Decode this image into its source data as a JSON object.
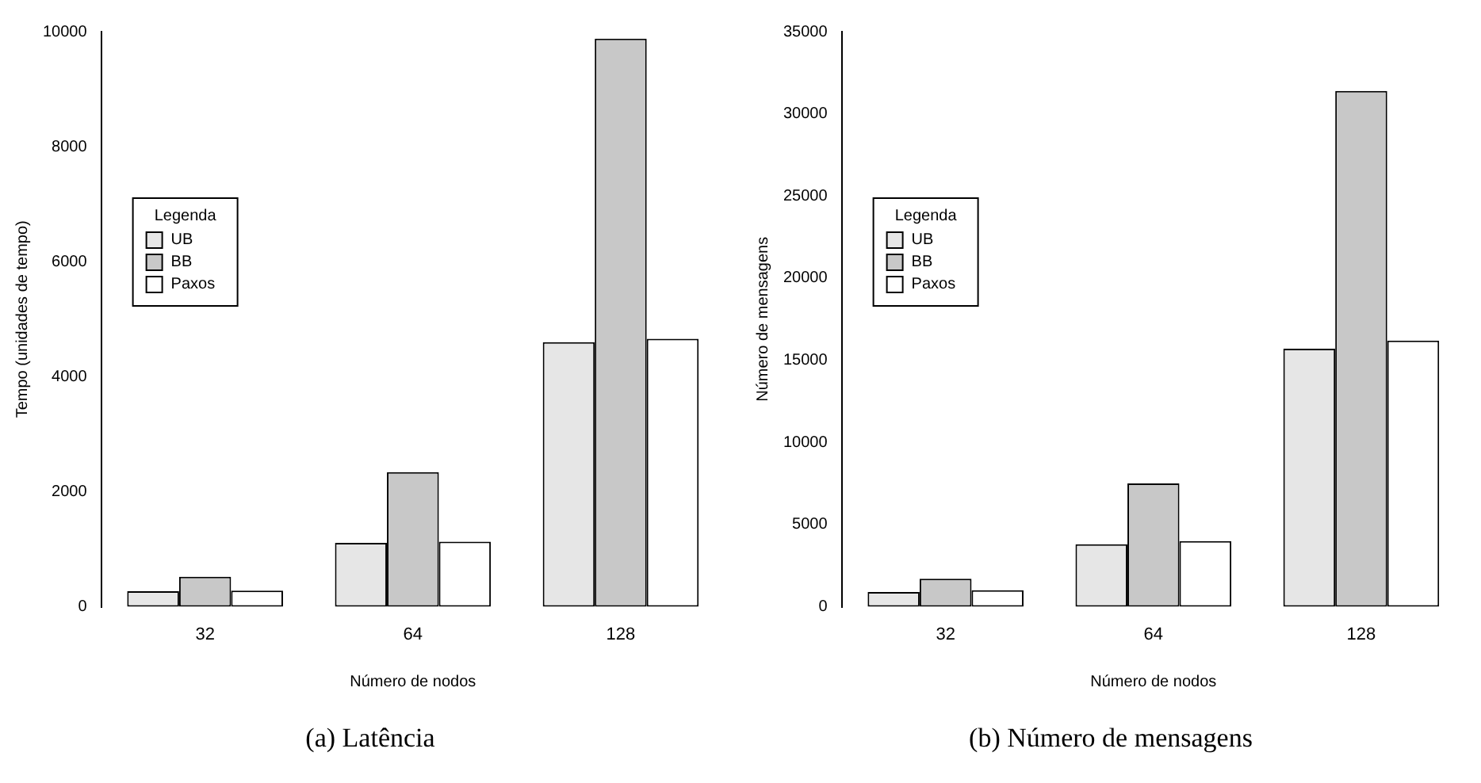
{
  "chart_data": [
    {
      "type": "bar",
      "categories": [
        "32",
        "64",
        "128"
      ],
      "xlabel": "Número de nodos",
      "ylabel": "Tempo (unidades de tempo)",
      "legend": "left",
      "legend_title": "Legenda",
      "ylim": [
        0,
        10000
      ],
      "yticks": [
        0,
        2000,
        4000,
        6000,
        8000,
        10000
      ],
      "annotations": [
        "(a) Latência"
      ],
      "series": [
        {
          "name": "UB",
          "color": "#e6e6e6",
          "values": [
            270,
            1110,
            4600
          ]
        },
        {
          "name": "BB",
          "color": "#c8c8c8",
          "values": [
            520,
            2340,
            9880
          ]
        },
        {
          "name": "Paxos",
          "color": "#ffffff",
          "values": [
            280,
            1130,
            4660
          ]
        }
      ]
    },
    {
      "type": "bar",
      "categories": [
        "32",
        "64",
        "128"
      ],
      "xlabel": "Número de nodos",
      "ylabel": "Número de mensagens",
      "legend": "left",
      "legend_title": "Legenda",
      "ylim": [
        0,
        35000
      ],
      "yticks": [
        0,
        5000,
        10000,
        15000,
        20000,
        25000,
        30000,
        35000
      ],
      "annotations": [
        "(b) Número de mensagens"
      ],
      "series": [
        {
          "name": "UB",
          "color": "#e6e6e6",
          "values": [
            900,
            3800,
            15700
          ]
        },
        {
          "name": "BB",
          "color": "#c8c8c8",
          "values": [
            1700,
            7500,
            31400
          ]
        },
        {
          "name": "Paxos",
          "color": "#ffffff",
          "values": [
            1000,
            4000,
            16200
          ]
        }
      ]
    }
  ]
}
